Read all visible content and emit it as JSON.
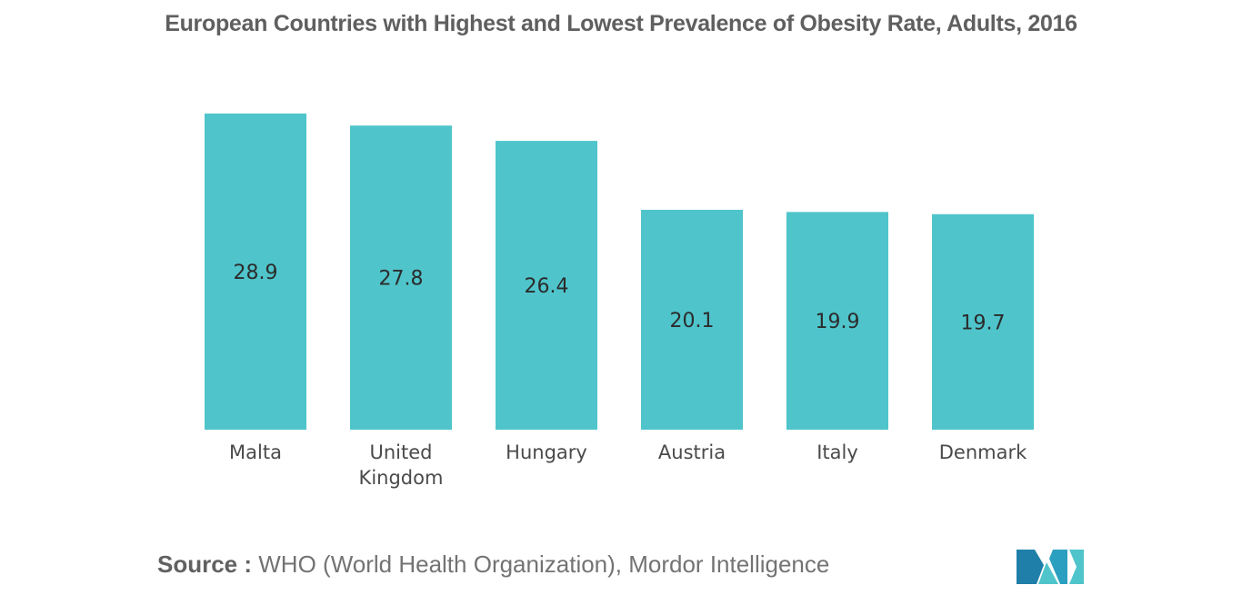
{
  "chart_data": {
    "type": "bar",
    "title": "European Countries with Highest and Lowest Prevalence of Obesity Rate, Adults, 2016",
    "categories": [
      [
        "Malta"
      ],
      [
        "United",
        "Kingdom"
      ],
      [
        "Hungary"
      ],
      [
        "Austria"
      ],
      [
        "Italy"
      ],
      [
        "Denmark"
      ]
    ],
    "values": [
      28.9,
      27.8,
      26.4,
      20.1,
      19.9,
      19.7
    ],
    "xlabel": "",
    "ylabel": "",
    "ylim": [
      0,
      28.9
    ],
    "grid": false,
    "legend": "none",
    "bar_color": "#4fc4cb"
  },
  "source": {
    "label": "Source :",
    "text": "WHO (World Health Organization), Mordor Intelligence"
  },
  "logo": {
    "icon": "mordor-intelligence-logo-icon",
    "colors": [
      "#1f7fa8",
      "#4fc4cb",
      "#2a9fc0"
    ]
  }
}
